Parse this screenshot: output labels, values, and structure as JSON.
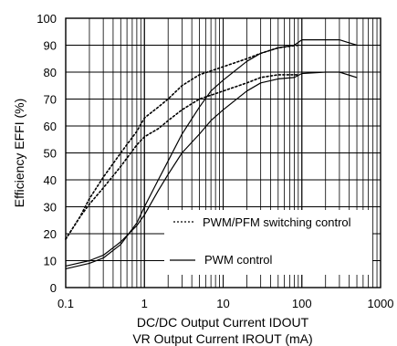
{
  "chart_data": {
    "type": "line",
    "x_scale": "log",
    "xlim": [
      0.1,
      1000
    ],
    "ylim": [
      0,
      100
    ],
    "grid": true,
    "legend_position": "bottom-right",
    "ylabel": "Efficiency EFFI (%)",
    "xlabel_lines": [
      "DC/DC Output Current IDOUT",
      "VR Output Current IROUT (mA)"
    ],
    "x_ticks": [
      {
        "v": 0.1,
        "label": "0.1"
      },
      {
        "v": 1,
        "label": "1"
      },
      {
        "v": 10,
        "label": "10"
      },
      {
        "v": 100,
        "label": "100"
      },
      {
        "v": 1000,
        "label": "1000"
      }
    ],
    "y_ticks": [
      0,
      10,
      20,
      30,
      40,
      50,
      60,
      70,
      80,
      90,
      100
    ],
    "legend": [
      {
        "label": "PWM/PFM switching control",
        "style": "dotted"
      },
      {
        "label": "PWM control",
        "style": "solid"
      }
    ],
    "series": [
      {
        "style": "dotted",
        "x": [
          0.1,
          0.15,
          0.2,
          0.3,
          0.5,
          0.8,
          1,
          1.5,
          2,
          3,
          5,
          8,
          10,
          20,
          30,
          50,
          90
        ],
        "y": [
          18,
          26,
          31,
          37,
          45,
          53,
          56,
          59,
          62,
          66,
          70,
          72,
          73,
          76,
          78,
          79,
          79
        ]
      },
      {
        "style": "dotted",
        "x": [
          0.1,
          0.15,
          0.2,
          0.3,
          0.5,
          0.8,
          1,
          1.5,
          2,
          3,
          5,
          8,
          10,
          20,
          30,
          50,
          90
        ],
        "y": [
          18,
          26,
          33,
          41,
          50,
          58,
          63,
          67,
          70,
          75,
          79,
          81,
          82,
          85,
          87,
          89,
          90
        ]
      },
      {
        "style": "solid",
        "x": [
          0.1,
          0.2,
          0.3,
          0.5,
          0.8,
          1,
          1.5,
          2,
          3,
          5,
          7,
          10,
          20,
          30,
          50,
          80,
          100,
          200,
          300,
          500
        ],
        "y": [
          8,
          10,
          12,
          17,
          23,
          27,
          36,
          42,
          50,
          57,
          62,
          66,
          73,
          76,
          77.5,
          78,
          79.5,
          80,
          80,
          78
        ]
      },
      {
        "style": "solid",
        "x": [
          0.1,
          0.2,
          0.3,
          0.5,
          0.8,
          1,
          1.5,
          2,
          3,
          5,
          7,
          10,
          20,
          30,
          50,
          80,
          100,
          200,
          300,
          500
        ],
        "y": [
          7,
          9,
          11,
          16,
          24,
          30,
          40,
          47,
          57,
          67,
          73,
          77,
          84,
          87,
          89,
          90,
          92,
          92,
          92,
          90
        ]
      }
    ]
  }
}
